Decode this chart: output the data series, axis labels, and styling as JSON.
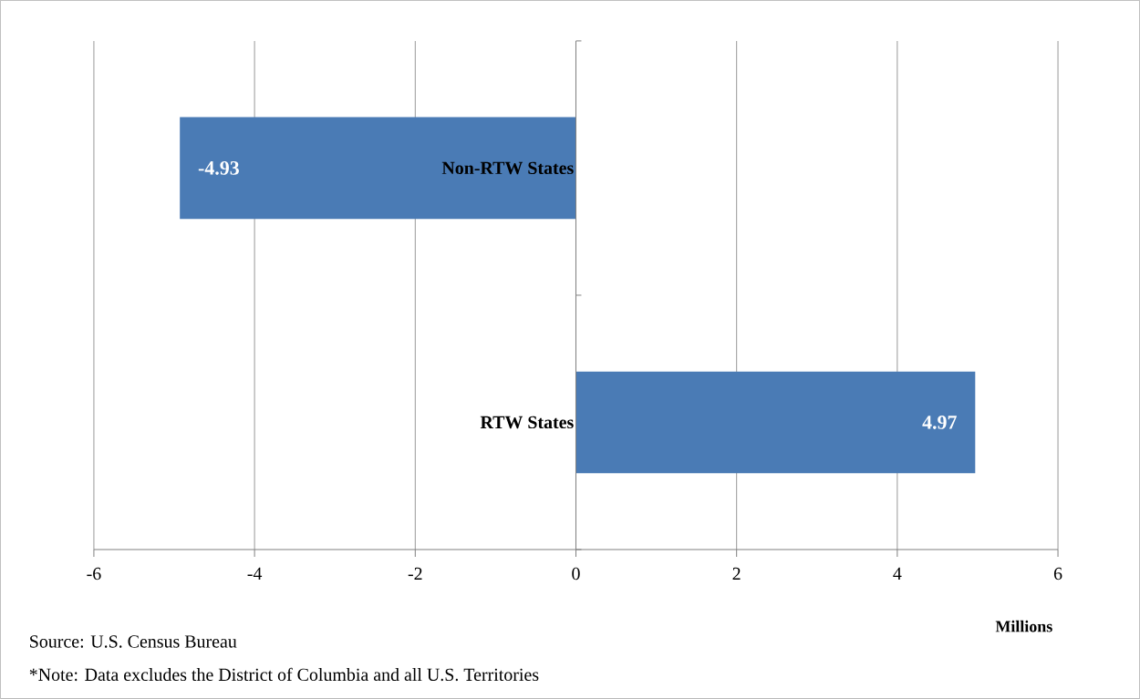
{
  "chart_data": {
    "type": "bar",
    "orientation": "horizontal",
    "categories": [
      "Non-RTW States",
      "RTW States"
    ],
    "values": [
      -4.93,
      4.97
    ],
    "color": "#4a7bb5",
    "data_labels": true,
    "xlim": [
      -6,
      6
    ],
    "xticks": [
      -6,
      -4,
      -2,
      0,
      2,
      4,
      6
    ],
    "grid": "x",
    "xlabel": "Millions",
    "annotations": [
      "Source: U.S. Census Bureau",
      "*Note: Data excludes the District of Columbia and all U.S. Territories"
    ]
  }
}
